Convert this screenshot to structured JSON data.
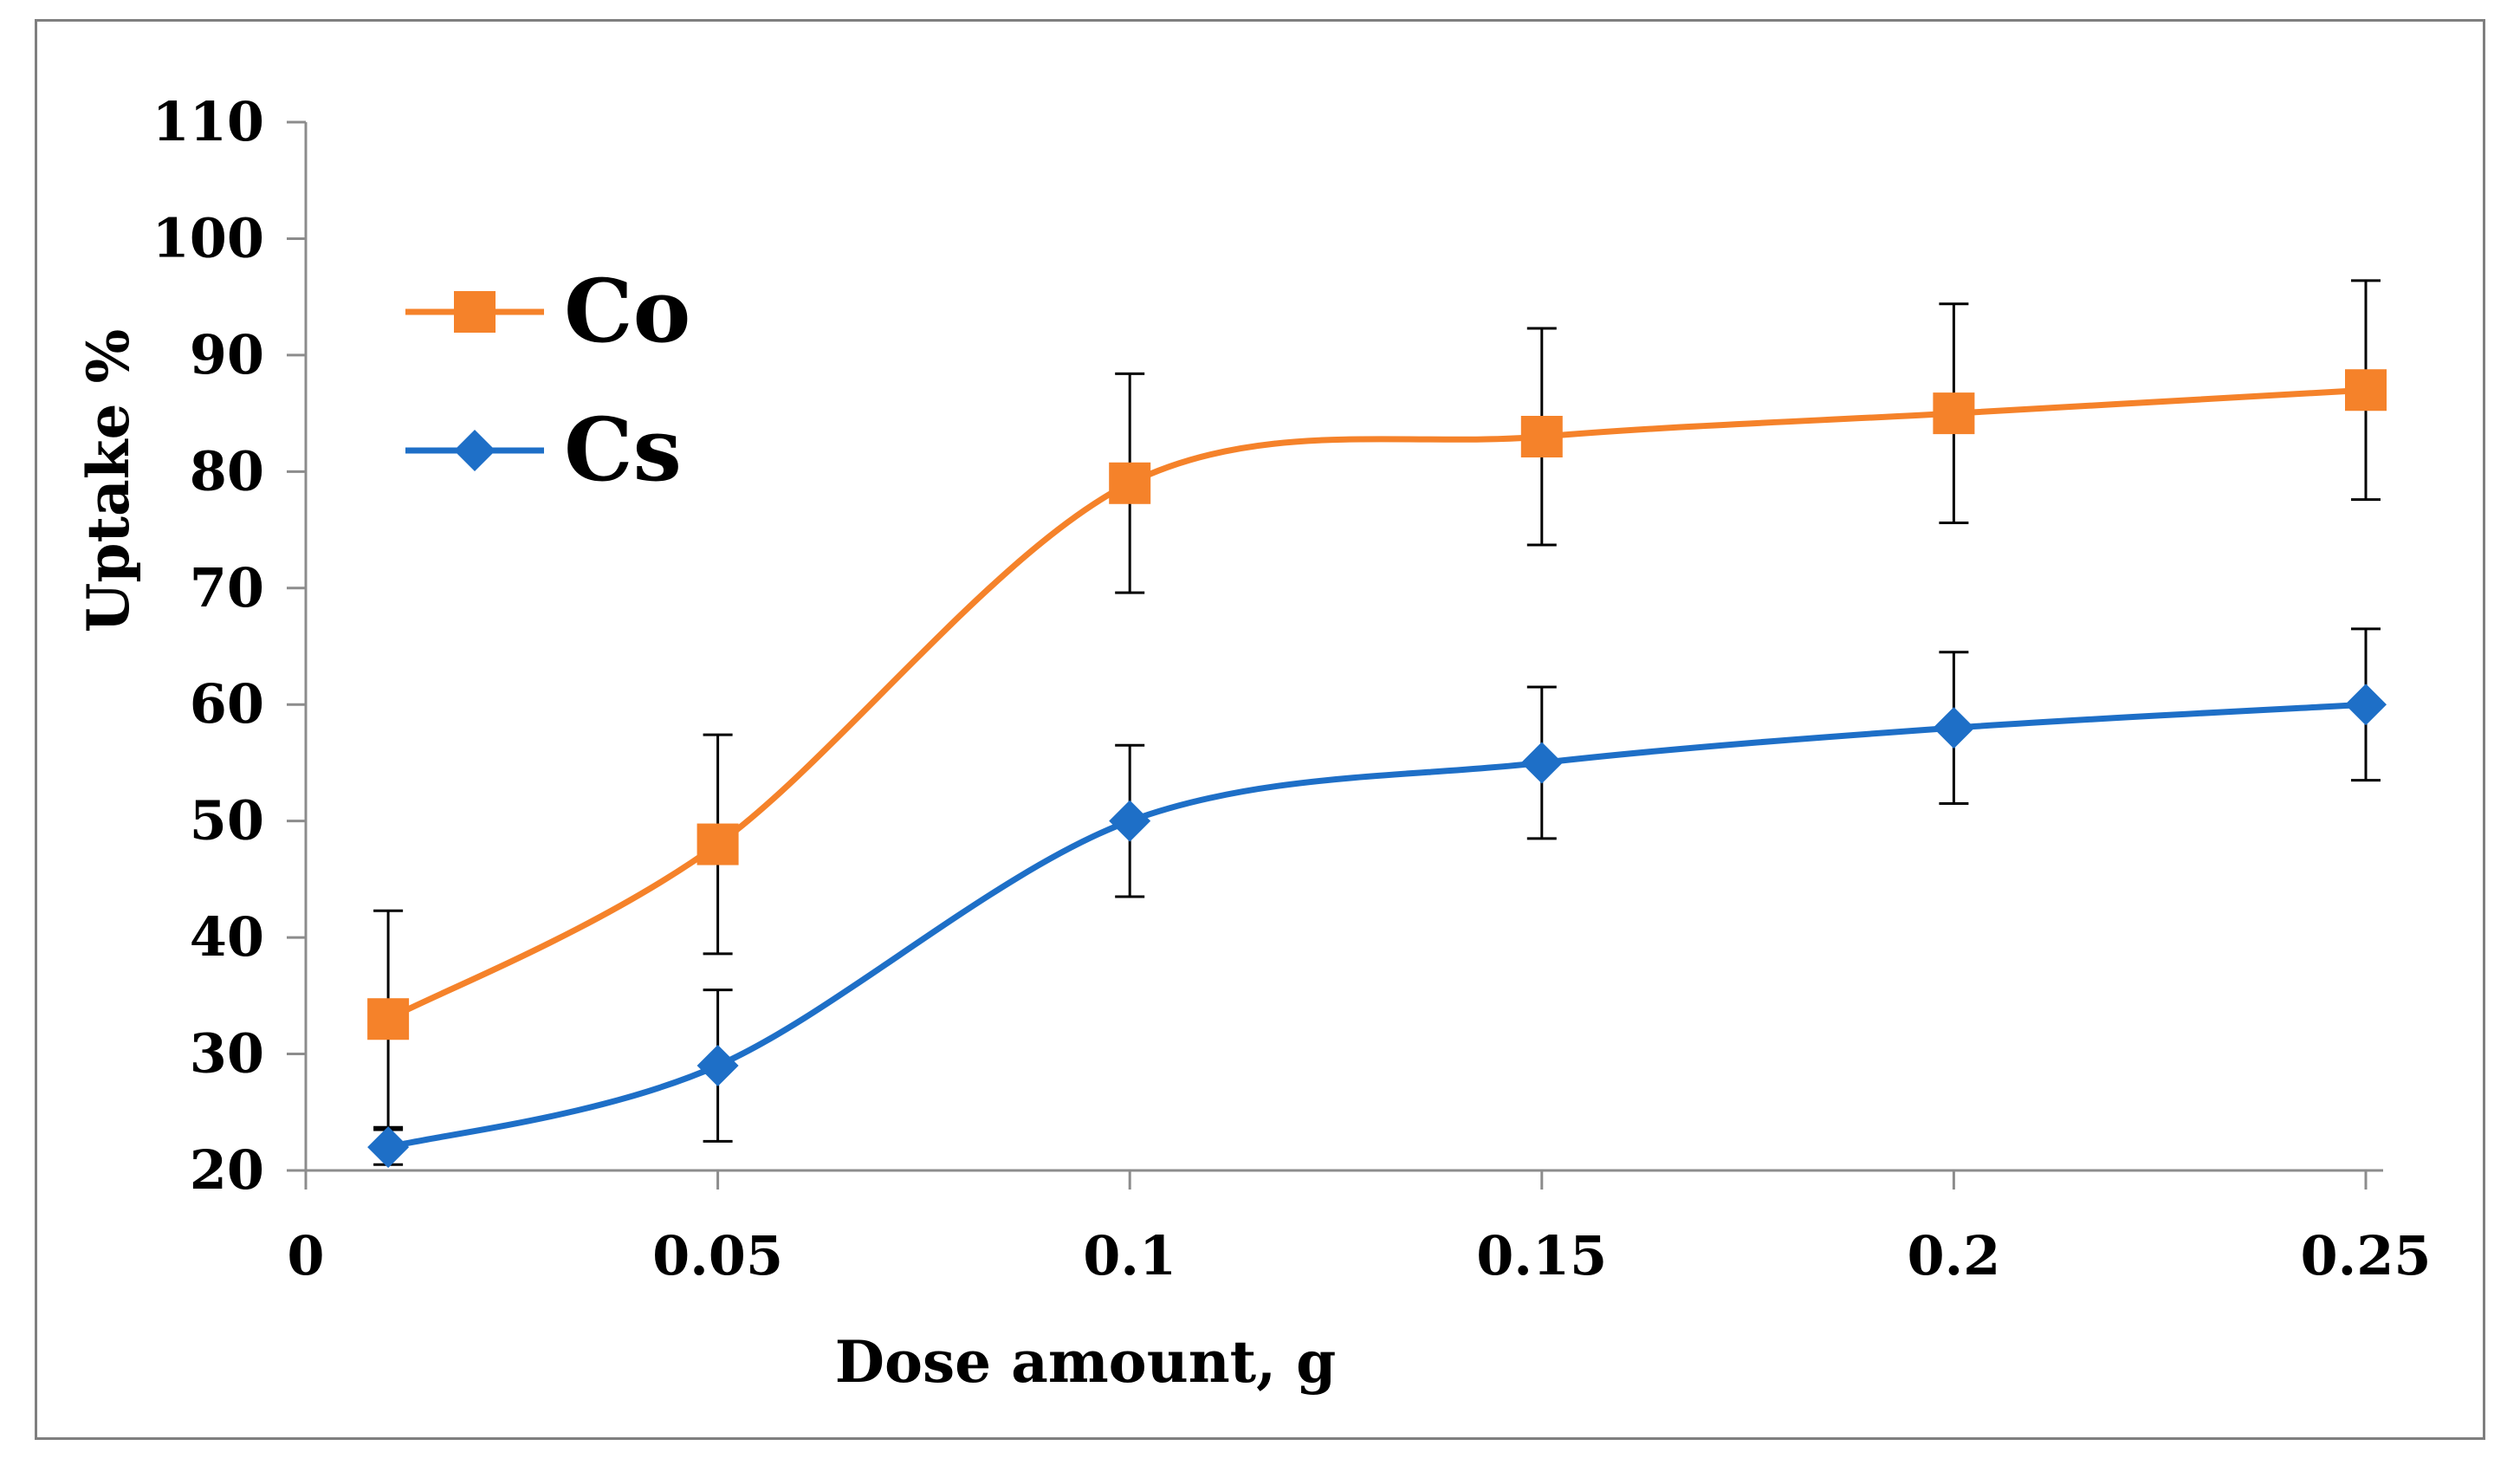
{
  "chart_data": {
    "type": "line",
    "title": "",
    "xlabel": "Dose amount, g",
    "ylabel": "Uptake %",
    "xlim": [
      0,
      0.25
    ],
    "ylim": [
      20,
      110
    ],
    "xticks": [
      0,
      0.05,
      0.1,
      0.15,
      0.2,
      0.25
    ],
    "xtick_labels": [
      "0",
      "0.05",
      "0.1",
      "0.15",
      "0.2",
      "0.25"
    ],
    "yticks": [
      20,
      30,
      40,
      50,
      60,
      70,
      80,
      90,
      100,
      110
    ],
    "ytick_labels": [
      "20",
      "30",
      "40",
      "50",
      "60",
      "70",
      "80",
      "90",
      "100",
      "110"
    ],
    "grid": false,
    "legend_position": "top-left",
    "x": [
      0.01,
      0.05,
      0.1,
      0.15,
      0.2,
      0.25
    ],
    "series": [
      {
        "name": "Co",
        "color": "#f5822a",
        "marker": "square",
        "values": [
          33,
          48,
          79,
          83,
          85,
          87
        ],
        "error": [
          9.3,
          9.4,
          9.4,
          9.3,
          9.4,
          9.4
        ]
      },
      {
        "name": "Cs",
        "color": "#1e6fc7",
        "marker": "diamond",
        "values": [
          22,
          29,
          50,
          55,
          58,
          60
        ],
        "error": [
          1.5,
          6.5,
          6.5,
          6.5,
          6.5,
          6.5
        ]
      }
    ]
  }
}
